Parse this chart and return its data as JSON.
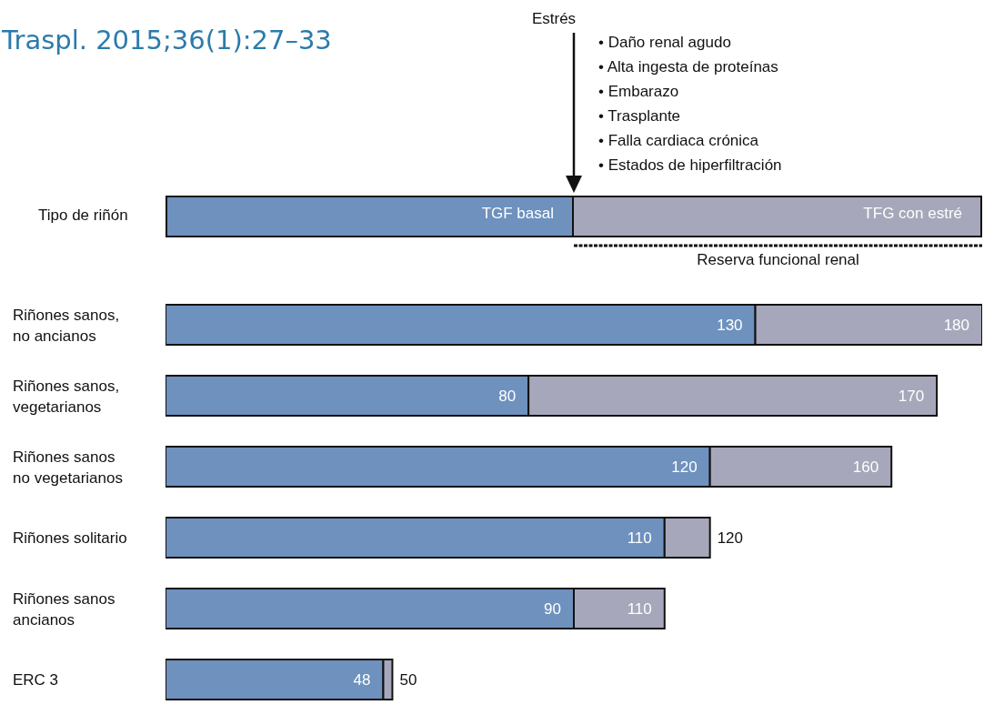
{
  "chart_data": {
    "type": "bar",
    "orientation": "horizontal",
    "stacked": true,
    "title": "Traspl. 2015;36(1):27–33",
    "ylabel": "Tipo de riñón",
    "categories": [
      "Riñones sanos, no ancianos",
      "Riñones sanos, vegetarianos",
      "Riñones sanos no vegetarianos",
      "Riñones solitario",
      "Riñones sanos ancianos",
      "ERC 3"
    ],
    "series": [
      {
        "name": "TGF basal",
        "color": "#6e91be",
        "values": [
          130,
          80,
          120,
          110,
          90,
          48
        ],
        "value_labels": [
          "130",
          "80",
          "120",
          "110",
          "90",
          "48"
        ]
      },
      {
        "name": "TFG con estré",
        "color": "#a6a7ba",
        "values": [
          50,
          90,
          40,
          10,
          20,
          2
        ]
      }
    ],
    "totals": [
      "180",
      "170",
      "160",
      "120",
      "110",
      "50"
    ],
    "xlim": [
      0,
      180
    ],
    "tick_labels": "y",
    "legend": "top",
    "annotations": [
      "Estrés",
      "• Daño renal agudo",
      "• Alta ingesta de proteínas",
      "• Embarazo",
      "• Trasplante",
      "• Falla cardiaca crónica",
      "• Estados de hiperfiltración",
      "Reserva funcional renal"
    ]
  }
}
